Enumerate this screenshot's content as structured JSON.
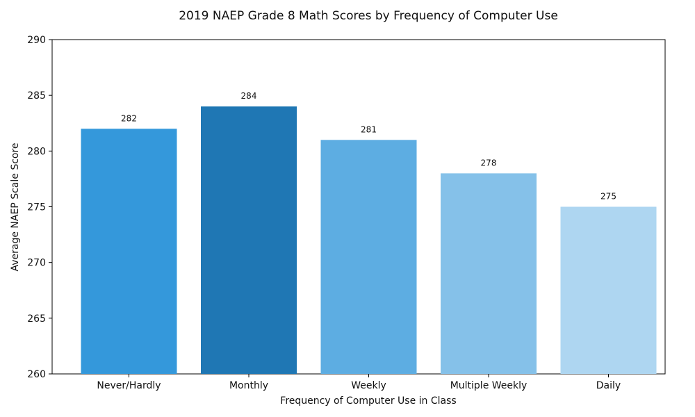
{
  "chart_data": {
    "type": "bar",
    "title": "2019 NAEP Grade 8 Math Scores by Frequency of Computer Use",
    "xlabel": "Frequency of Computer Use in Class",
    "ylabel": "Average NAEP Scale Score",
    "categories": [
      "Never/Hardly",
      "Monthly",
      "Weekly",
      "Multiple Weekly",
      "Daily"
    ],
    "values": [
      282,
      284,
      281,
      278,
      275
    ],
    "data_labels": [
      "282",
      "284",
      "281",
      "278",
      "275"
    ],
    "colors": [
      "#3498db",
      "#1f77b4",
      "#5dade2",
      "#85c1e9",
      "#aed6f1"
    ],
    "ylim": [
      260,
      290
    ],
    "yticks": [
      260,
      265,
      270,
      275,
      280,
      285,
      290
    ],
    "ytick_labels": [
      "260",
      "265",
      "270",
      "275",
      "280",
      "285",
      "290"
    ],
    "grid": false,
    "legend": "none"
  }
}
